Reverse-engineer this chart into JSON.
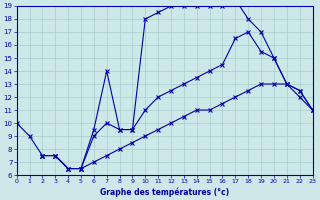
{
  "xlabel": "Graphe des températures (°c)",
  "bg_color": "#cce8e8",
  "line_color": "#0000aa",
  "grid_color": "#aacccc",
  "x_min": 0,
  "x_max": 23,
  "y_min": 6,
  "y_max": 19,
  "line1_x": [
    0,
    1,
    2,
    3,
    4,
    5,
    6,
    7,
    8,
    9,
    10,
    11,
    12,
    13,
    14,
    15,
    16,
    17,
    18,
    19,
    20,
    21,
    22,
    23
  ],
  "line1_y": [
    10,
    9,
    7.5,
    7.5,
    6.5,
    6.5,
    7.0,
    7.5,
    8.0,
    8.5,
    9.0,
    9.5,
    10.0,
    10.5,
    11.0,
    11.0,
    11.5,
    12.0,
    12.5,
    13.0,
    13.0,
    13.0,
    12.5,
    11.0
  ],
  "line2_x": [
    2,
    3,
    4,
    5,
    6,
    7,
    8,
    9,
    10,
    11,
    12,
    13,
    14,
    15,
    16,
    17,
    18,
    19,
    20,
    21,
    22,
    23
  ],
  "line2_y": [
    7.5,
    7.5,
    6.5,
    6.5,
    9.5,
    14.0,
    9.5,
    9.5,
    18.0,
    18.5,
    19.0,
    19.0,
    19.0,
    19.0,
    19.0,
    19.5,
    18.0,
    17.0,
    15.0,
    13.0,
    12.0,
    11.0
  ],
  "line3_x": [
    2,
    3,
    4,
    5,
    6,
    7,
    8,
    9,
    10,
    11,
    12,
    13,
    14,
    15,
    16,
    17,
    18,
    19,
    20,
    21,
    22,
    23
  ],
  "line3_y": [
    7.5,
    7.5,
    6.5,
    6.5,
    9.0,
    10.0,
    9.5,
    9.5,
    11.0,
    12.0,
    12.5,
    13.0,
    13.5,
    14.0,
    14.5,
    16.5,
    17.0,
    15.5,
    15.0,
    13.0,
    12.5,
    11.0
  ]
}
